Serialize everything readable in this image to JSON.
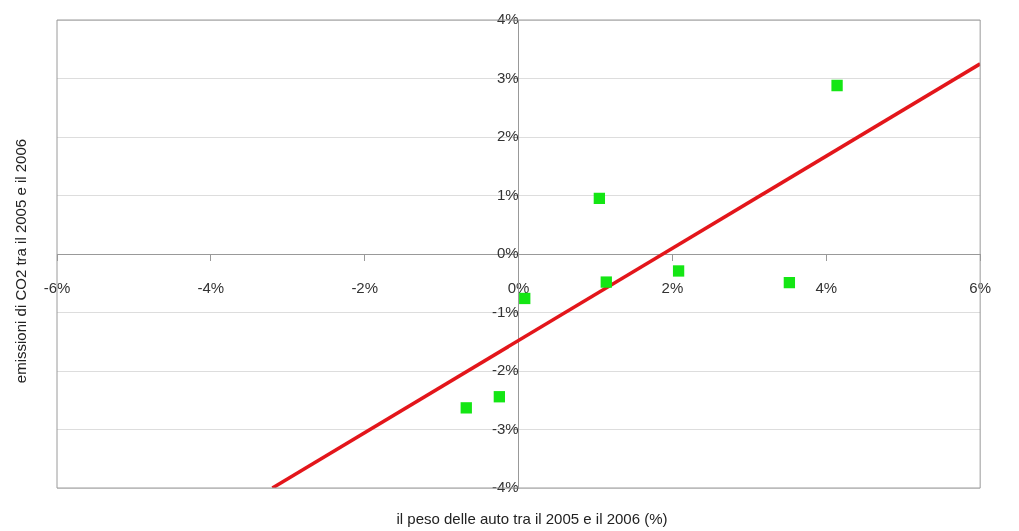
{
  "chart_data": {
    "type": "scatter",
    "xlabel": "il peso delle auto tra il 2005 e il 2006 (%)",
    "ylabel": "emissioni di CO2 tra il 2005 e il 2006",
    "xlim": [
      -6,
      6
    ],
    "ylim": [
      -4,
      4
    ],
    "xticks": [
      {
        "value": -6,
        "label": "-6%"
      },
      {
        "value": -4,
        "label": "-4%"
      },
      {
        "value": -2,
        "label": "-2%"
      },
      {
        "value": 0,
        "label": "0%"
      },
      {
        "value": 2,
        "label": "2%"
      },
      {
        "value": 4,
        "label": "4%"
      },
      {
        "value": 6,
        "label": "6%"
      }
    ],
    "yticks": [
      {
        "value": -4,
        "label": "-4%"
      },
      {
        "value": -3,
        "label": "-3%"
      },
      {
        "value": -2,
        "label": "-2%"
      },
      {
        "value": -1,
        "label": "-1%"
      },
      {
        "value": 0,
        "label": "0%"
      },
      {
        "value": 1,
        "label": "1%"
      },
      {
        "value": 2,
        "label": "2%"
      },
      {
        "value": 3,
        "label": "3%"
      },
      {
        "value": 4,
        "label": "4%"
      }
    ],
    "grid": "y",
    "marker": "square",
    "series": [
      {
        "color": "#14e614",
        "x": [
          4.14,
          1.05,
          1.14,
          2.08,
          3.52,
          0.08,
          -0.25,
          -0.68
        ],
        "values": [
          2.88,
          0.95,
          -0.48,
          -0.29,
          -0.49,
          -0.76,
          -2.44,
          -2.63
        ]
      },
      {
        "type": "line",
        "color": "#e3161b",
        "marker": "none",
        "x": [
          -3.2,
          6
        ],
        "values": [
          -4,
          3.25
        ]
      }
    ]
  }
}
